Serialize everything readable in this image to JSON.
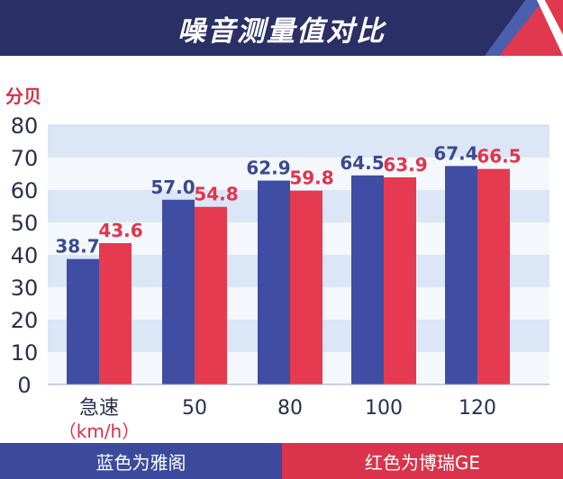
{
  "banner": {
    "title": "噪音测量值对比",
    "colors": {
      "background": "#2a2f66",
      "accent_blue": "#4a5fae",
      "accent_red": "#e0384f"
    }
  },
  "chart_data": {
    "type": "bar",
    "title": "噪音测量值对比",
    "ylabel": "分贝",
    "xlabel": "（km/h）",
    "categories": [
      "急速",
      "50",
      "80",
      "100",
      "120"
    ],
    "series": [
      {
        "name": "雅阁",
        "color": "#3f4ea3",
        "label_color": "#3b4a8f",
        "values": [
          38.7,
          57.0,
          62.9,
          64.5,
          67.4
        ]
      },
      {
        "name": "博瑞GE",
        "color": "#e63a50",
        "label_color": "#e2344b",
        "values": [
          43.6,
          54.8,
          59.8,
          63.9,
          66.5
        ]
      }
    ],
    "ylim": [
      0,
      80
    ],
    "yticks": [
      "0",
      "10",
      "20",
      "30",
      "40",
      "50",
      "60",
      "70",
      "80"
    ],
    "value_labels": [
      [
        "38.7",
        "57.0",
        "62.9",
        "64.5",
        "67.4"
      ],
      [
        "43.6",
        "54.8",
        "59.8",
        "63.9",
        "66.5"
      ]
    ],
    "grid": true,
    "band_colors": [
      "#dbe6f6",
      "#f4f8fd"
    ],
    "legend_placement": "bottom"
  },
  "legend": {
    "left_label": "蓝色为雅阁",
    "right_label": "红色为博瑞GE"
  }
}
